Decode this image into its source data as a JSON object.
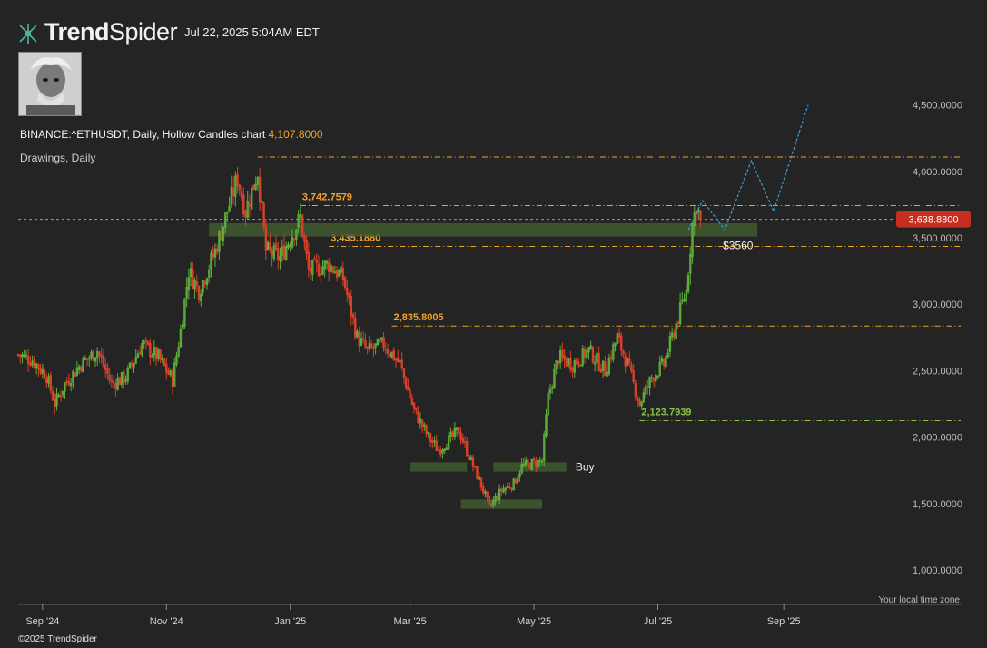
{
  "header": {
    "brand_bold": "Trend",
    "brand_light": "Spider",
    "timestamp": "Jul 22, 2025 5:04AM EDT",
    "chart_title": "BINANCE:^ETHUSDT, Daily, Hollow Candles chart",
    "title_level": "4,107.8000",
    "drawings_label": "Drawings, Daily"
  },
  "footer": {
    "timezone": "Your local time zone",
    "copyright": "©2025 TrendSpider"
  },
  "colors": {
    "background": "#242424",
    "up_candle": "#5fae3b",
    "down_candle": "#d9402b",
    "level_line": "#f0a32c",
    "support_line": "#8bc34a",
    "zone": "#3f5a2f",
    "projection": "#3a9fd6",
    "price_badge": "#c62e20"
  },
  "chart_data": {
    "type": "candlestick",
    "symbol": "BINANCE:^ETHUSDT",
    "interval": "Daily",
    "y_axis": {
      "ticks": [
        1000,
        1500,
        2000,
        2500,
        3000,
        3500,
        4000,
        4500
      ],
      "tick_labels": [
        "1,000.0000",
        "1,500.0000",
        "2,000.0000",
        "2,500.0000",
        "3,000.0000",
        "3,500.0000",
        "4,000.0000",
        "4,500.0000"
      ],
      "range": [
        740,
        4880
      ]
    },
    "x_axis": {
      "ticks": [
        "2024-09-01",
        "2024-11-01",
        "2025-01-01",
        "2025-03-01",
        "2025-05-01",
        "2025-07-01",
        "2025-09-01"
      ],
      "tick_labels": [
        "Sep '24",
        "Nov '24",
        "Jan '25",
        "Mar '25",
        "May '25",
        "Jul '25",
        "Sep '25"
      ],
      "range": [
        "2024-08-20",
        "2025-10-21"
      ]
    },
    "price_path": [
      [
        "2024-08-20",
        2620
      ],
      [
        "2024-08-27",
        2580
      ],
      [
        "2024-09-03",
        2460
      ],
      [
        "2024-09-07",
        2250
      ],
      [
        "2024-09-12",
        2400
      ],
      [
        "2024-09-20",
        2550
      ],
      [
        "2024-09-28",
        2650
      ],
      [
        "2024-10-05",
        2400
      ],
      [
        "2024-10-12",
        2450
      ],
      [
        "2024-10-20",
        2700
      ],
      [
        "2024-10-28",
        2600
      ],
      [
        "2024-11-04",
        2430
      ],
      [
        "2024-11-08",
        2800
      ],
      [
        "2024-11-12",
        3250
      ],
      [
        "2024-11-17",
        3100
      ],
      [
        "2024-11-25",
        3400
      ],
      [
        "2024-11-30",
        3650
      ],
      [
        "2024-12-06",
        3950
      ],
      [
        "2024-12-10",
        3700
      ],
      [
        "2024-12-16",
        4000
      ],
      [
        "2024-12-20",
        3400
      ],
      [
        "2024-12-27",
        3350
      ],
      [
        "2025-01-06",
        3650
      ],
      [
        "2025-01-10",
        3250
      ],
      [
        "2025-01-20",
        3300
      ],
      [
        "2025-01-27",
        3200
      ],
      [
        "2025-02-03",
        2750
      ],
      [
        "2025-02-08",
        2650
      ],
      [
        "2025-02-16",
        2700
      ],
      [
        "2025-02-24",
        2550
      ],
      [
        "2025-03-03",
        2200
      ],
      [
        "2025-03-10",
        2000
      ],
      [
        "2025-03-15",
        1900
      ],
      [
        "2025-03-25",
        2050
      ],
      [
        "2025-03-31",
        1820
      ],
      [
        "2025-04-06",
        1600
      ],
      [
        "2025-04-09",
        1470
      ],
      [
        "2025-04-15",
        1600
      ],
      [
        "2025-04-21",
        1650
      ],
      [
        "2025-04-25",
        1780
      ],
      [
        "2025-05-05",
        1820
      ],
      [
        "2025-05-08",
        2300
      ],
      [
        "2025-05-13",
        2600
      ],
      [
        "2025-05-20",
        2550
      ],
      [
        "2025-05-28",
        2650
      ],
      [
        "2025-06-05",
        2500
      ],
      [
        "2025-06-11",
        2750
      ],
      [
        "2025-06-16",
        2550
      ],
      [
        "2025-06-22",
        2250
      ],
      [
        "2025-06-28",
        2450
      ],
      [
        "2025-07-04",
        2550
      ],
      [
        "2025-07-09",
        2800
      ],
      [
        "2025-07-12",
        2950
      ],
      [
        "2025-07-15",
        3100
      ],
      [
        "2025-07-18",
        3600
      ],
      [
        "2025-07-20",
        3750
      ],
      [
        "2025-07-22",
        3638.88
      ]
    ],
    "levels": [
      {
        "value": 4107.8,
        "label": "4,107.8000",
        "start": "2024-12-16",
        "color": "orange"
      },
      {
        "value": 3742.7579,
        "label": "3,742.7579",
        "start": "2025-01-06",
        "color": "orange"
      },
      {
        "value": 3435.188,
        "label": "3,435.1880",
        "start": "2025-01-20",
        "color": "orange"
      },
      {
        "value": 2835.8005,
        "label": "2,835.8005",
        "start": "2025-02-20",
        "color": "orange"
      },
      {
        "value": 2123.7939,
        "label": "2,123.7939",
        "start": "2025-06-22",
        "color": "green"
      }
    ],
    "zones": [
      {
        "from": "2024-11-22",
        "to": "2025-08-19",
        "low": 3510,
        "high": 3610,
        "label": "$3560"
      },
      {
        "from": "2025-03-01",
        "to": "2025-03-29",
        "low": 1740,
        "high": 1810,
        "label": ""
      },
      {
        "from": "2025-04-11",
        "to": "2025-05-17",
        "low": 1740,
        "high": 1810,
        "label": "Buy"
      },
      {
        "from": "2025-03-26",
        "to": "2025-05-05",
        "low": 1460,
        "high": 1530,
        "label": ""
      }
    ],
    "last_price": {
      "value": 3638.88,
      "label": "3,638.8800"
    },
    "projection": [
      [
        "2025-07-16",
        3560
      ],
      [
        "2025-07-23",
        3780
      ],
      [
        "2025-08-03",
        3560
      ],
      [
        "2025-08-16",
        4080
      ],
      [
        "2025-08-27",
        3700
      ],
      [
        "2025-09-13",
        4500
      ]
    ]
  }
}
